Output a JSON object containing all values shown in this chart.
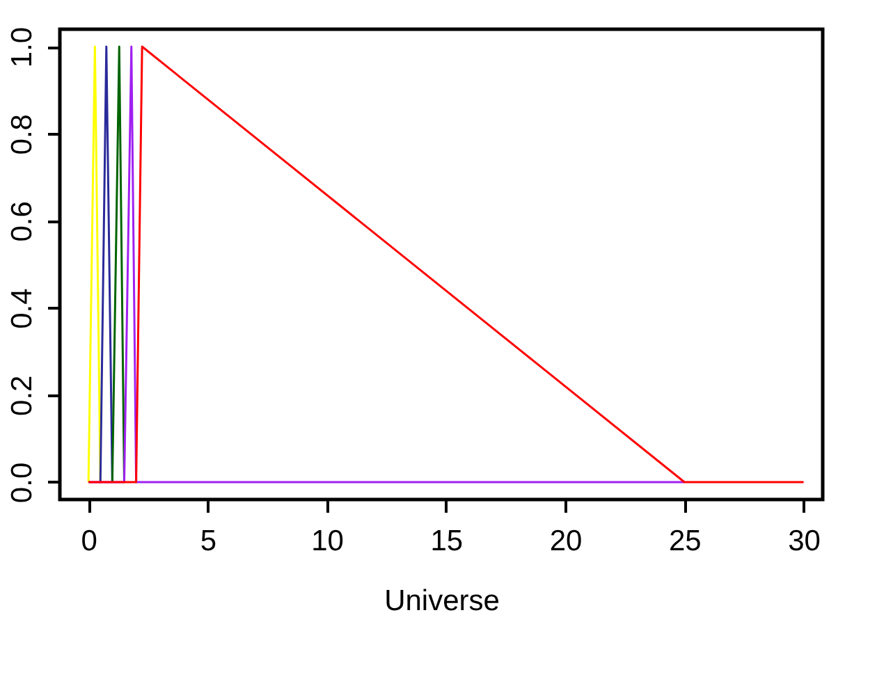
{
  "chart_data": {
    "type": "line",
    "xlabel": "Universe",
    "series": [
      {
        "color": "#ffff00",
        "x": [
          0,
          0.27,
          0.5
        ],
        "values": [
          0,
          1,
          0
        ]
      },
      {
        "color": "#2a2a9a",
        "x": [
          0.5,
          0.75,
          1
        ],
        "values": [
          0,
          1,
          0
        ]
      },
      {
        "color": "#006400",
        "x": [
          1,
          1.29,
          1.5
        ],
        "values": [
          0,
          1,
          0
        ]
      },
      {
        "color": "#a020f0",
        "x": [
          0,
          1.5,
          1.8,
          2,
          25
        ],
        "values": [
          0,
          0,
          1,
          0,
          0
        ]
      },
      {
        "color": "#ff0000",
        "x": [
          0,
          2,
          2.25,
          25,
          30
        ],
        "values": [
          0,
          0,
          1,
          0,
          0
        ]
      }
    ],
    "xlim": [
      -1.2,
      30.8
    ],
    "xticks": [
      0,
      5,
      10,
      15,
      20,
      25,
      30
    ],
    "ylim": [
      -0.04,
      1.04
    ],
    "yticks": [
      {
        "value": 0,
        "label": "0.0"
      },
      {
        "value": 0.2,
        "label": "0.2"
      },
      {
        "value": 0.4,
        "label": "0.4"
      },
      {
        "value": 0.6,
        "label": "0.6"
      },
      {
        "value": 0.8,
        "label": "0.8"
      },
      {
        "value": 1,
        "label": "1.0"
      }
    ],
    "grid": false,
    "marker": "none",
    "line_style": "solid"
  }
}
